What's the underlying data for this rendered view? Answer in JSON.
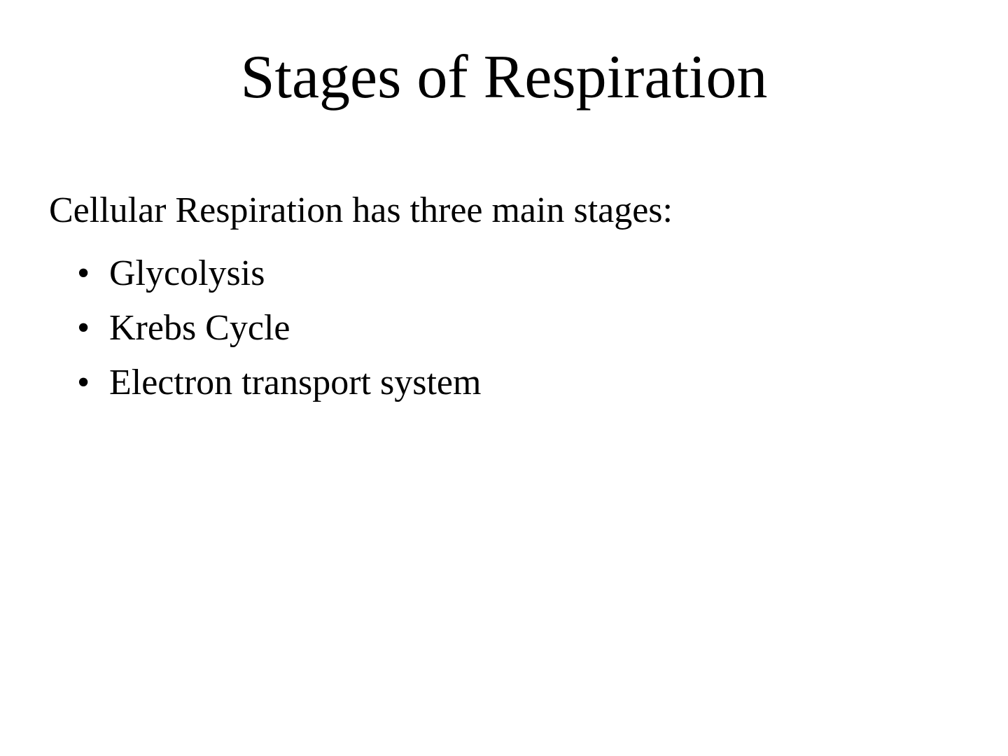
{
  "slide": {
    "title": "Stages of Respiration",
    "intro": "Cellular Respiration has three main stages:",
    "bullets": [
      "Glycolysis",
      "Krebs Cycle",
      "Electron transport system"
    ],
    "colors": {
      "background": "#ffffff",
      "text": "#000000"
    },
    "typography": {
      "family": "Times New Roman",
      "title_fontsize": 88,
      "body_fontsize": 52
    }
  }
}
